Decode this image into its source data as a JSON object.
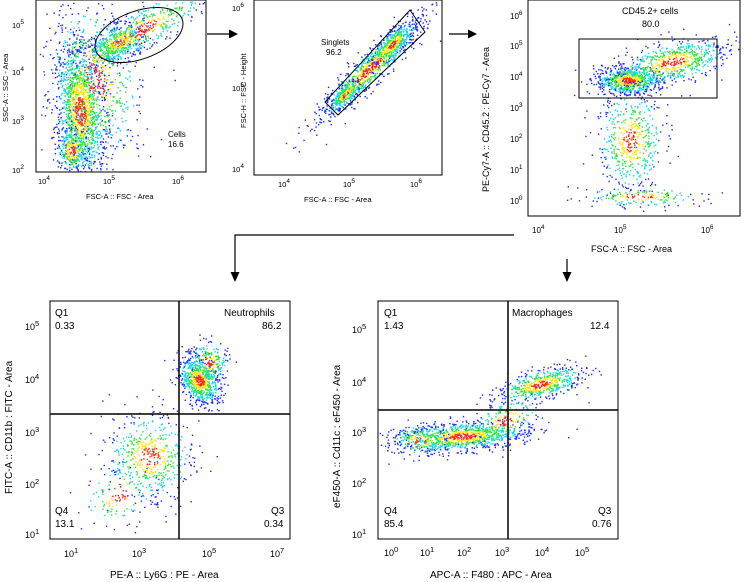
{
  "colors": {
    "low": "#1a2cff",
    "mid": "#14d9e6",
    "high": "#2ce63a",
    "hot": "#ffe414",
    "peak": "#ff2a10"
  },
  "plots": [
    {
      "id": "p1",
      "ylabel": "SSC-A :: SSC - Area",
      "xlabel": "FSC-A :: FSC - Area",
      "xticks": [
        {
          "e": "10",
          "p": "4"
        },
        {
          "e": "10",
          "p": "5"
        },
        {
          "e": "10",
          "p": "6"
        }
      ],
      "yticks": [
        {
          "e": "10",
          "p": "2"
        },
        {
          "e": "10",
          "p": "3"
        },
        {
          "e": "10",
          "p": "4"
        },
        {
          "e": "10",
          "p": "5"
        }
      ],
      "gate_name": "Cells",
      "gate_value": "16.6"
    },
    {
      "id": "p2",
      "ylabel": "FSC-H :: FSC - Height",
      "xlabel": "FSC-A :: FSC - Area",
      "xticks": [
        {
          "e": "10",
          "p": "4"
        },
        {
          "e": "10",
          "p": "5"
        },
        {
          "e": "10",
          "p": "6"
        }
      ],
      "yticks": [
        {
          "e": "10",
          "p": "4"
        },
        {
          "e": "10",
          "p": "5"
        },
        {
          "e": "10",
          "p": "6"
        }
      ],
      "gate_name": "Singlets",
      "gate_value": "96.2"
    },
    {
      "id": "p3",
      "ylabel": "PE-Cy7-A :: CD45.2 : PE-Cy7 - Area",
      "xlabel": "FSC-A :: FSC - Area",
      "xticks": [
        {
          "e": "10",
          "p": "4"
        },
        {
          "e": "10",
          "p": "5"
        },
        {
          "e": "10",
          "p": "6"
        }
      ],
      "yticks": [
        {
          "e": "10",
          "p": "0"
        },
        {
          "e": "10",
          "p": "1"
        },
        {
          "e": "10",
          "p": "2"
        },
        {
          "e": "10",
          "p": "3"
        },
        {
          "e": "10",
          "p": "4"
        },
        {
          "e": "10",
          "p": "5"
        },
        {
          "e": "10",
          "p": "6"
        }
      ],
      "gate_name": "CD45.2+ cells",
      "gate_value": "80.0"
    },
    {
      "id": "p4",
      "ylabel": "FITC-A :: CD11b : FITC - Area",
      "xlabel": "PE-A :: Ly6G : PE - Area",
      "xticks": [
        {
          "e": "10",
          "p": "1"
        },
        {
          "e": "10",
          "p": "3"
        },
        {
          "e": "10",
          "p": "5"
        },
        {
          "e": "10",
          "p": "7"
        }
      ],
      "yticks": [
        {
          "e": "10",
          "p": "1"
        },
        {
          "e": "10",
          "p": "2"
        },
        {
          "e": "10",
          "p": "3"
        },
        {
          "e": "10",
          "p": "4"
        },
        {
          "e": "10",
          "p": "5"
        }
      ],
      "quadrants": [
        {
          "name": "Q1",
          "value": "0.33"
        },
        {
          "name": "Neutrophils",
          "value": "86.2"
        },
        {
          "name": "Q4",
          "value": "13.1"
        },
        {
          "name": "Q3",
          "value": "0.34"
        }
      ]
    },
    {
      "id": "p5",
      "ylabel": "eF450-A :: Cd11c : eF450 - Area",
      "xlabel": "APC-A :: F480 : APC - Area",
      "xticks": [
        {
          "e": "10",
          "p": "0"
        },
        {
          "e": "10",
          "p": "1"
        },
        {
          "e": "10",
          "p": "2"
        },
        {
          "e": "10",
          "p": "3"
        },
        {
          "e": "10",
          "p": "4"
        },
        {
          "e": "10",
          "p": "5"
        }
      ],
      "yticks": [
        {
          "e": "10",
          "p": "1"
        },
        {
          "e": "10",
          "p": "2"
        },
        {
          "e": "10",
          "p": "3"
        },
        {
          "e": "10",
          "p": "4"
        },
        {
          "e": "10",
          "p": "5"
        }
      ],
      "quadrants": [
        {
          "name": "Q1",
          "value": "1.43"
        },
        {
          "name": "Macrophages",
          "value": "12.4"
        },
        {
          "name": "Q4",
          "value": "85.4"
        },
        {
          "name": "Q3",
          "value": "0.76"
        }
      ]
    }
  ]
}
